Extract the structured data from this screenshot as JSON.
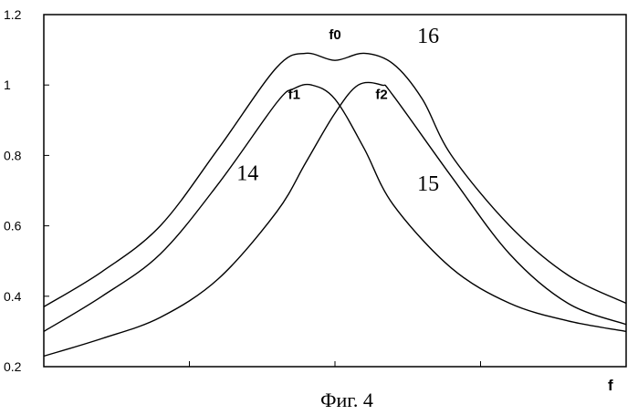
{
  "chart_data": {
    "type": "line",
    "xlabel": "f",
    "ylabel": "",
    "ylim": [
      0.2,
      1.2
    ],
    "xlim": [
      0,
      1
    ],
    "yticks": [
      0.2,
      0.4,
      0.6,
      0.8,
      1,
      1.2
    ],
    "ytick_labels": [
      "0.2",
      "0.4",
      "0.6",
      "0.8",
      "1",
      "1.2"
    ],
    "grid": false,
    "caption": "Фиг. 4",
    "series": [
      {
        "name": "14",
        "x": [
          0,
          0.1,
          0.2,
          0.3,
          0.4,
          0.43,
          0.46,
          0.5,
          0.55,
          0.6,
          0.7,
          0.8,
          0.9,
          1.0
        ],
        "y": [
          0.3,
          0.4,
          0.52,
          0.72,
          0.95,
          0.99,
          1.0,
          0.96,
          0.82,
          0.66,
          0.48,
          0.38,
          0.33,
          0.3
        ]
      },
      {
        "name": "15",
        "x": [
          0,
          0.1,
          0.2,
          0.3,
          0.4,
          0.45,
          0.5,
          0.54,
          0.58,
          0.6,
          0.7,
          0.8,
          0.9,
          1.0
        ],
        "y": [
          0.23,
          0.28,
          0.34,
          0.45,
          0.64,
          0.78,
          0.92,
          1.0,
          1.0,
          0.97,
          0.74,
          0.52,
          0.38,
          0.32
        ]
      },
      {
        "name": "16",
        "x": [
          0,
          0.1,
          0.2,
          0.3,
          0.4,
          0.45,
          0.5,
          0.55,
          0.6,
          0.65,
          0.7,
          0.8,
          0.9,
          1.0
        ],
        "y": [
          0.37,
          0.47,
          0.6,
          0.82,
          1.05,
          1.09,
          1.07,
          1.09,
          1.06,
          0.96,
          0.8,
          0.6,
          0.46,
          0.38
        ]
      }
    ],
    "annotations": [
      {
        "text": "f0",
        "x": 0.5,
        "y": 1.13
      },
      {
        "text": "f1",
        "x": 0.43,
        "y": 0.96
      },
      {
        "text": "f2",
        "x": 0.58,
        "y": 0.96
      },
      {
        "text": "16",
        "x": 0.66,
        "y": 1.12
      },
      {
        "text": "14",
        "x": 0.35,
        "y": 0.73
      },
      {
        "text": "15",
        "x": 0.66,
        "y": 0.7
      }
    ]
  }
}
